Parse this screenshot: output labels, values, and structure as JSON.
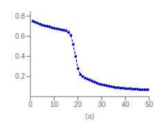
{
  "chart_data": {
    "type": "line",
    "x_label": "(a)",
    "x": [
      1,
      2,
      3,
      4,
      5,
      6,
      7,
      8,
      9,
      10,
      11,
      12,
      13,
      14,
      15,
      16,
      17,
      18,
      19,
      20,
      21,
      22,
      23,
      24,
      25,
      26,
      27,
      28,
      29,
      30,
      31,
      32,
      33,
      34,
      35,
      36,
      37,
      38,
      39,
      40,
      41,
      42,
      43,
      44,
      45,
      46,
      47,
      48,
      49,
      50
    ],
    "series": [
      {
        "color": "#0000cc",
        "line_style": "dashed",
        "marker": "dot",
        "values": [
          0.75,
          0.74,
          0.73,
          0.72,
          0.71,
          0.705,
          0.7,
          0.695,
          0.685,
          0.68,
          0.675,
          0.67,
          0.665,
          0.66,
          0.655,
          0.64,
          0.61,
          0.52,
          0.4,
          0.28,
          0.22,
          0.2,
          0.185,
          0.175,
          0.165,
          0.155,
          0.145,
          0.135,
          0.125,
          0.12,
          0.115,
          0.11,
          0.105,
          0.1,
          0.095,
          0.09,
          0.09,
          0.085,
          0.085,
          0.08,
          0.08,
          0.08,
          0.075,
          0.075,
          0.075,
          0.07,
          0.07,
          0.07,
          0.07,
          0.07
        ]
      }
    ],
    "xlim": [
      0,
      50
    ],
    "ylim": [
      0,
      0.85
    ],
    "xticks": [
      0,
      10,
      20,
      30,
      40,
      50
    ],
    "yticks": [
      0.2,
      0.4,
      0.6,
      0.8
    ]
  }
}
